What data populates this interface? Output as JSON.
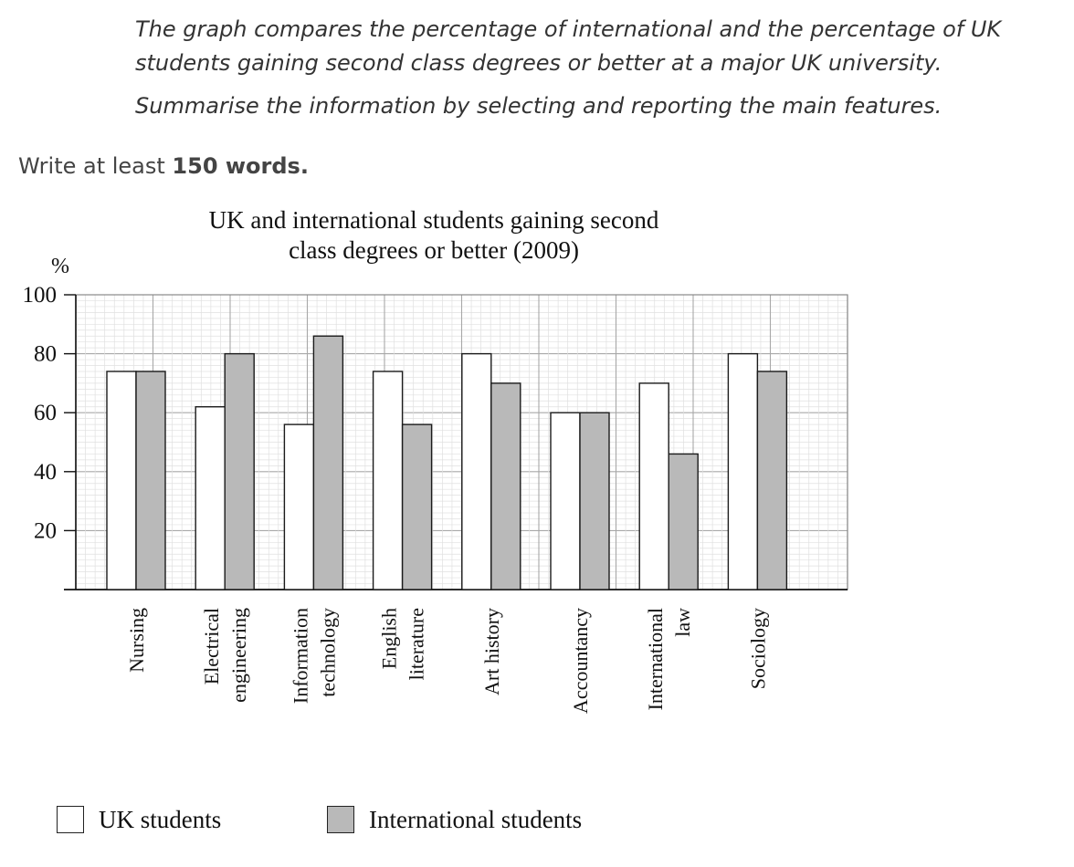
{
  "prompt": {
    "line1": "The graph compares the percentage of international and the percentage of UK",
    "line2": "students gaining second class degrees or better at a major UK university.",
    "line3": "Summarise the information by selecting and reporting the main features."
  },
  "instruction": {
    "pre": "Write at least ",
    "bold": "150 words."
  },
  "chart_data": {
    "type": "bar",
    "title_line1": "UK and international students gaining second",
    "title_line2": "class degrees or better (2009)",
    "ylabel": "%",
    "ylim": [
      0,
      100
    ],
    "yticks": [
      20,
      40,
      60,
      80,
      100
    ],
    "grid": true,
    "categories": [
      [
        "Nursing"
      ],
      [
        "Electrical",
        "engineering"
      ],
      [
        "Information",
        "technology"
      ],
      [
        "English",
        "literature"
      ],
      [
        "Art history"
      ],
      [
        "Accountancy"
      ],
      [
        "International",
        "law"
      ],
      [
        "Sociology"
      ]
    ],
    "series": [
      {
        "name": "UK students",
        "color": "#ffffff",
        "values": [
          74,
          62,
          56,
          74,
          80,
          60,
          70,
          80
        ]
      },
      {
        "name": "International students",
        "color": "#b9b9b9",
        "values": [
          74,
          80,
          86,
          56,
          70,
          60,
          46,
          74
        ]
      }
    ],
    "legend_position": "bottom"
  }
}
